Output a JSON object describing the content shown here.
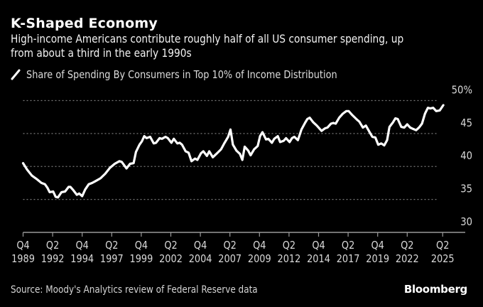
{
  "header": {
    "title": "K-Shaped Economy",
    "subtitle_line1": "High-income Americans contribute roughly half of all US consumer spending, up",
    "subtitle_line2": "from about a third in the early 1990s"
  },
  "legend": {
    "icon": "line-series-icon",
    "label": "Share of Spending By Consumers in Top 10% of Income Distribution"
  },
  "footer": {
    "source": "Source: Moody's Analytics review of Federal Reserve data",
    "brand": "Bloomberg"
  },
  "colors": {
    "background": "#000000",
    "line": "#ffffff",
    "grid": "#777777",
    "axis": "#999999",
    "tick_text": "#d9d9d9"
  },
  "chart_data": {
    "type": "line",
    "title": "K-Shaped Economy",
    "subtitle": "High-income Americans contribute roughly half of all US consumer spending, up from about a third in the early 1990s",
    "xlabel": "",
    "ylabel": "",
    "y_unit_suffix": "%",
    "ylim": [
      30,
      50
    ],
    "xlim": [
      1989.75,
      2025.25
    ],
    "grid": true,
    "legend_position": "top-left",
    "y_axis_side": "right",
    "yticks": [
      {
        "value": 50,
        "label": "50%"
      },
      {
        "value": 45,
        "label": "45"
      },
      {
        "value": 40,
        "label": "40"
      },
      {
        "value": 35,
        "label": "35"
      },
      {
        "value": 30,
        "label": "30"
      }
    ],
    "xticks": [
      {
        "value": 1989.75,
        "q": "Q4",
        "year": "1989"
      },
      {
        "value": 1992.25,
        "q": "Q2",
        "year": "1992"
      },
      {
        "value": 1994.75,
        "q": "Q4",
        "year": "1994"
      },
      {
        "value": 1997.25,
        "q": "Q2",
        "year": "1997"
      },
      {
        "value": 1999.75,
        "q": "Q4",
        "year": "1999"
      },
      {
        "value": 2002.25,
        "q": "Q2",
        "year": "2002"
      },
      {
        "value": 2004.75,
        "q": "Q4",
        "year": "2004"
      },
      {
        "value": 2007.25,
        "q": "Q2",
        "year": "2007"
      },
      {
        "value": 2009.75,
        "q": "Q4",
        "year": "2009"
      },
      {
        "value": 2012.25,
        "q": "Q2",
        "year": "2012"
      },
      {
        "value": 2014.75,
        "q": "Q4",
        "year": "2014"
      },
      {
        "value": 2017.25,
        "q": "Q2",
        "year": "2017"
      },
      {
        "value": 2019.75,
        "q": "Q4",
        "year": "2019"
      },
      {
        "value": 2022.25,
        "q": "Q2",
        "year": "2022"
      },
      {
        "value": 2025.25,
        "q": "Q2",
        "year": "2025"
      }
    ],
    "series": [
      {
        "name": "Share of Spending By Consumers in Top 10% of Income Distribution",
        "x": [
          1989.75,
          1990.1,
          1990.5,
          1990.9,
          1991.3,
          1991.6,
          1991.8,
          1992.0,
          1992.3,
          1992.5,
          1992.7,
          1993.0,
          1993.3,
          1993.6,
          1993.75,
          1994.0,
          1994.3,
          1994.5,
          1994.75,
          1995.0,
          1995.3,
          1995.6,
          1995.9,
          1996.3,
          1996.7,
          1997.1,
          1997.5,
          1997.9,
          1998.1,
          1998.5,
          1998.8,
          1999.1,
          1999.3,
          1999.6,
          1999.8,
          2000.0,
          2000.2,
          2000.5,
          2000.8,
          2001.0,
          2001.3,
          2001.5,
          2001.8,
          2002.0,
          2002.3,
          2002.5,
          2002.8,
          2003.0,
          2003.2,
          2003.5,
          2003.75,
          2004.0,
          2004.3,
          2004.5,
          2004.8,
          2005.0,
          2005.3,
          2005.5,
          2005.8,
          2006.1,
          2006.5,
          2006.8,
          2007.1,
          2007.3,
          2007.5,
          2007.8,
          2008.1,
          2008.3,
          2008.5,
          2008.8,
          2009.0,
          2009.3,
          2009.6,
          2009.8,
          2010.0,
          2010.3,
          2010.5,
          2010.8,
          2011.0,
          2011.3,
          2011.5,
          2011.8,
          2012.0,
          2012.3,
          2012.5,
          2012.7,
          2013.0,
          2013.3,
          2013.6,
          2013.8,
          2014.0,
          2014.3,
          2014.6,
          2015.0,
          2015.3,
          2015.5,
          2015.8,
          2016.0,
          2016.2,
          2016.5,
          2016.8,
          2017.1,
          2017.3,
          2017.6,
          2018.0,
          2018.2,
          2018.5,
          2018.75,
          2019.1,
          2019.3,
          2019.55,
          2019.8,
          2020.05,
          2020.3,
          2020.55,
          2020.75,
          2021.05,
          2021.25,
          2021.45,
          2021.75,
          2022.0,
          2022.25,
          2022.5,
          2022.75,
          2023.0,
          2023.25,
          2023.5,
          2023.75,
          2024.0,
          2024.2,
          2024.45,
          2024.7,
          2025.0,
          2025.3
        ],
        "values": [
          40.5,
          39.5,
          38.6,
          38.1,
          37.5,
          37.3,
          36.8,
          36.1,
          36.2,
          35.4,
          35.3,
          36.1,
          36.2,
          36.9,
          36.9,
          36.4,
          35.7,
          35.9,
          35.5,
          36.5,
          37.3,
          37.5,
          37.8,
          38.2,
          38.9,
          39.8,
          40.4,
          40.8,
          40.7,
          39.7,
          40.4,
          40.5,
          42.2,
          43.3,
          43.8,
          44.6,
          44.3,
          44.5,
          43.5,
          43.6,
          44.3,
          44.2,
          44.5,
          44.3,
          43.6,
          44.2,
          43.5,
          43.6,
          43.3,
          42.3,
          42.1,
          40.8,
          41.2,
          41.0,
          42.0,
          42.3,
          41.6,
          42.3,
          41.4,
          41.9,
          42.6,
          43.6,
          44.5,
          45.6,
          43.3,
          42.4,
          41.9,
          41.0,
          43.0,
          42.4,
          41.7,
          42.6,
          43.1,
          44.6,
          45.2,
          44.1,
          44.2,
          43.6,
          44.2,
          44.6,
          43.7,
          43.9,
          44.3,
          43.7,
          44.3,
          44.5,
          44.0,
          45.6,
          46.6,
          47.2,
          47.4,
          46.7,
          46.2,
          45.4,
          45.8,
          45.9,
          46.5,
          46.6,
          46.5,
          47.4,
          48.0,
          48.4,
          48.4,
          47.8,
          47.1,
          46.8,
          45.9,
          46.2,
          45.1,
          44.5,
          44.4,
          43.3,
          43.5,
          43.2,
          44.0,
          46.0,
          46.7,
          47.3,
          47.2,
          46.0,
          45.9,
          46.4,
          45.9,
          45.7,
          45.5,
          45.9,
          46.5,
          48.0,
          48.9,
          48.8,
          48.9,
          48.4,
          48.5,
          49.3
        ]
      }
    ]
  }
}
